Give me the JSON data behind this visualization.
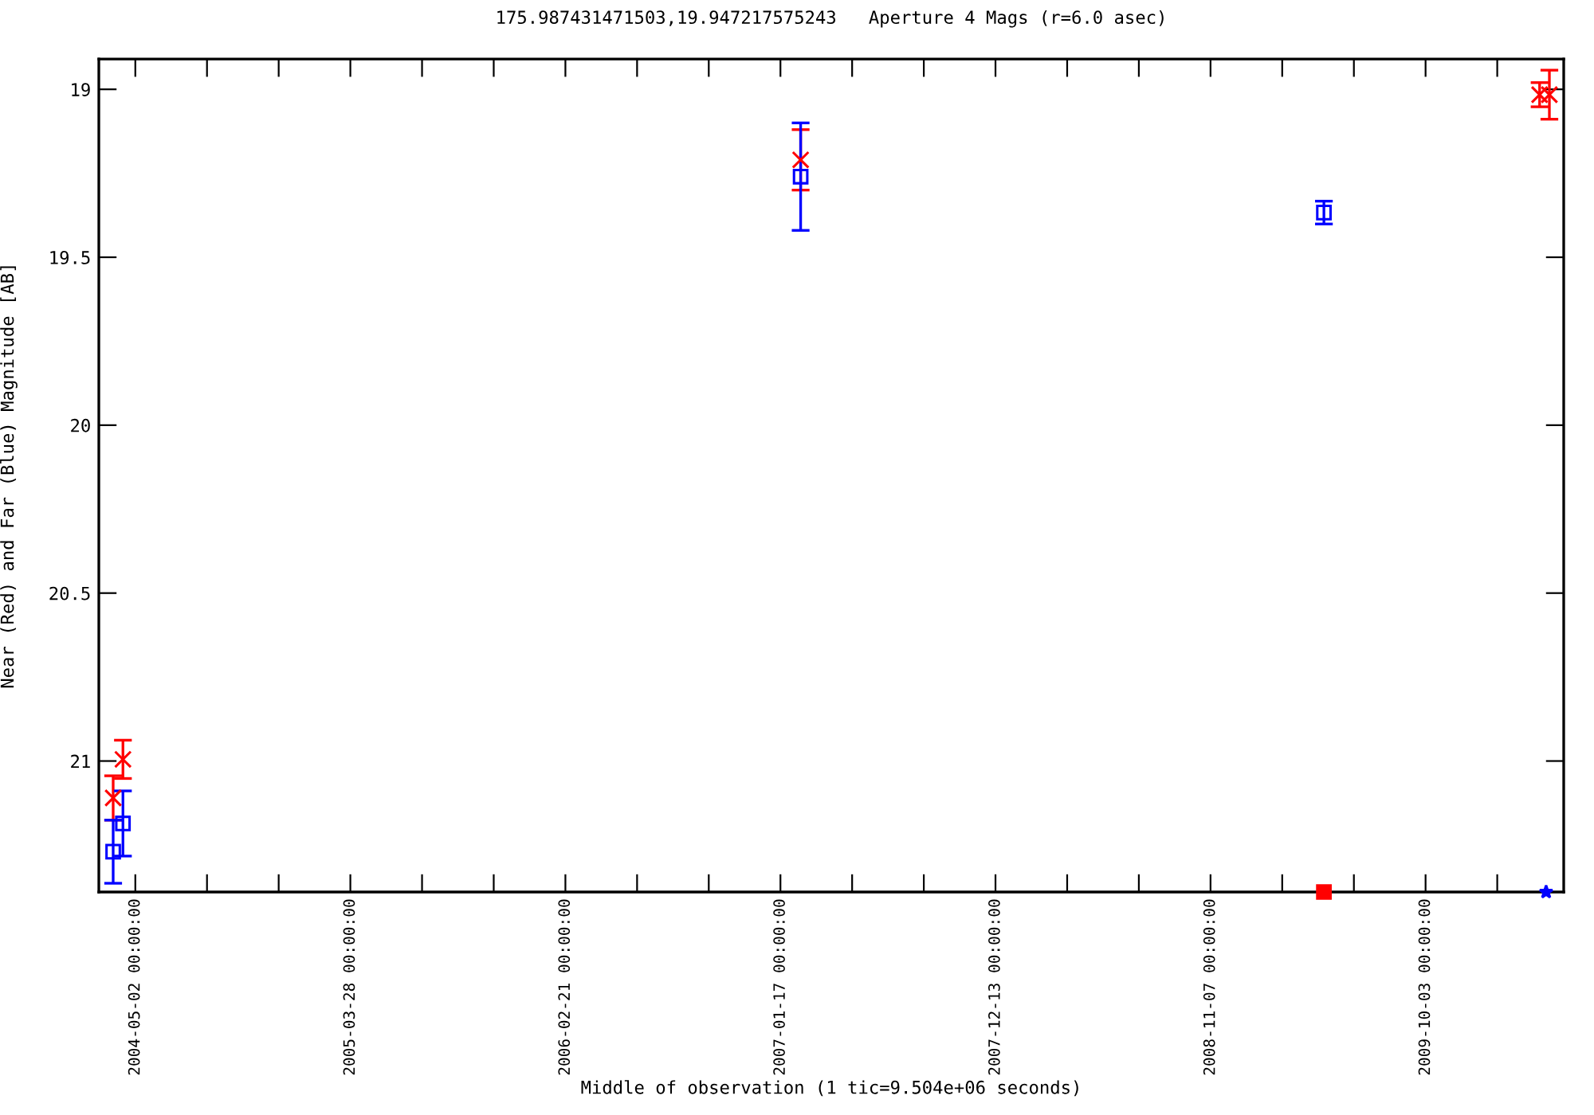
{
  "chart_data": {
    "type": "scatter",
    "title": "175.987431471503,19.947217575243   Aperture 4 Mags (r=6.0 asec)",
    "xlabel": "Middle of observation (1 tic=9.504e+06 seconds)",
    "ylabel": "Near (Red) and Far (Blue) Magnitude [AB]",
    "series": [
      {
        "color": "#ff0000",
        "marker": "cross",
        "x": [
          "2004-03-29",
          "2004-04-13",
          "2007-02-17",
          "2010-03-27",
          "2010-04-11"
        ],
        "values": [
          21.11,
          20.995,
          19.21,
          19.016,
          19.016
        ],
        "errors": [
          0.066,
          0.057,
          0.09,
          0.036,
          0.073
        ]
      },
      {
        "color": "#0000ff",
        "marker": "square",
        "x": [
          "2004-03-29",
          "2004-04-13",
          "2007-02-17",
          "2009-04-30"
        ],
        "values": [
          21.27,
          21.186,
          19.26,
          19.367
        ],
        "errors": [
          0.094,
          0.097,
          0.16,
          0.034
        ]
      },
      {
        "color": "#ff0000",
        "marker": "square",
        "x": [
          "2009-04-30"
        ],
        "values": [
          21.39
        ]
      },
      {
        "color": "#0000ff",
        "marker": "star",
        "x": [
          "2010-04-06"
        ],
        "values": [
          21.39
        ]
      }
    ],
    "xlim": [
      "2004-03-07",
      "2010-05-03"
    ],
    "ylim": [
      21.39,
      18.91
    ],
    "xticks": [
      {
        "value": "2004-05-02",
        "label": "2004-05-02 00:00:00"
      },
      {
        "value": "2004-08-20",
        "label": null
      },
      {
        "value": "2004-12-08",
        "label": null
      },
      {
        "value": "2005-03-28",
        "label": "2005-03-28 00:00:00"
      },
      {
        "value": "2005-07-16",
        "label": null
      },
      {
        "value": "2005-11-03",
        "label": null
      },
      {
        "value": "2006-02-21",
        "label": "2006-02-21 00:00:00"
      },
      {
        "value": "2006-06-11",
        "label": null
      },
      {
        "value": "2006-09-29",
        "label": null
      },
      {
        "value": "2007-01-17",
        "label": "2007-01-17 00:00:00"
      },
      {
        "value": "2007-05-07",
        "label": null
      },
      {
        "value": "2007-08-25",
        "label": null
      },
      {
        "value": "2007-12-13",
        "label": "2007-12-13 00:00:00"
      },
      {
        "value": "2008-04-01",
        "label": null
      },
      {
        "value": "2008-07-20",
        "label": null
      },
      {
        "value": "2008-11-07",
        "label": "2008-11-07 00:00:00"
      },
      {
        "value": "2009-02-25",
        "label": null
      },
      {
        "value": "2009-06-15",
        "label": null
      },
      {
        "value": "2009-10-03",
        "label": "2009-10-03 00:00:00"
      },
      {
        "value": "2010-01-21",
        "label": null
      }
    ],
    "yticks": [
      19,
      19.5,
      20,
      20.5,
      21
    ],
    "grid": false
  }
}
